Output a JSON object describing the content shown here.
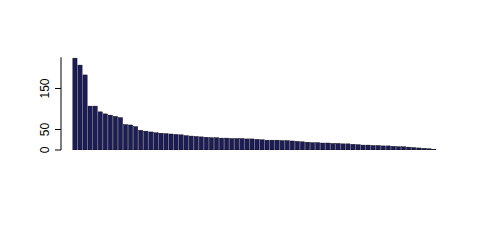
{
  "chart_data": {
    "type": "bar",
    "categories": [
      null,
      null,
      null,
      null,
      null,
      null,
      null,
      null,
      null,
      null,
      null,
      null,
      null,
      null,
      null,
      null,
      null,
      null,
      null,
      null,
      null,
      null,
      null,
      null,
      null,
      null,
      null,
      null,
      null,
      null,
      null,
      null,
      null,
      null,
      null,
      null,
      null,
      null,
      null,
      null,
      null,
      null,
      null,
      null,
      null,
      null,
      null,
      null,
      null,
      null,
      null,
      null,
      null,
      null,
      null,
      null,
      null,
      null,
      null,
      null,
      null,
      null,
      null,
      null,
      null,
      null,
      null,
      null,
      null,
      null,
      null,
      null
    ],
    "values": [
      224,
      207,
      183,
      107,
      107,
      93,
      88,
      85,
      82,
      79,
      62,
      61,
      57,
      48,
      46,
      44,
      42,
      41,
      40,
      39,
      38,
      37,
      35,
      34,
      33,
      32,
      31,
      30,
      30,
      29,
      29,
      28,
      28,
      28,
      27,
      27,
      26,
      25,
      24,
      24,
      24,
      23,
      23,
      22,
      21,
      20,
      19,
      18,
      18,
      17,
      17,
      16,
      16,
      15,
      15,
      14,
      13,
      12,
      12,
      11,
      11,
      10,
      10,
      9,
      8,
      8,
      7,
      6,
      5,
      4,
      3,
      2
    ],
    "color": "#1c1c5a",
    "ylim": [
      0,
      226
    ],
    "yticks": [
      0,
      50,
      150
    ],
    "tick_labels": "y"
  }
}
